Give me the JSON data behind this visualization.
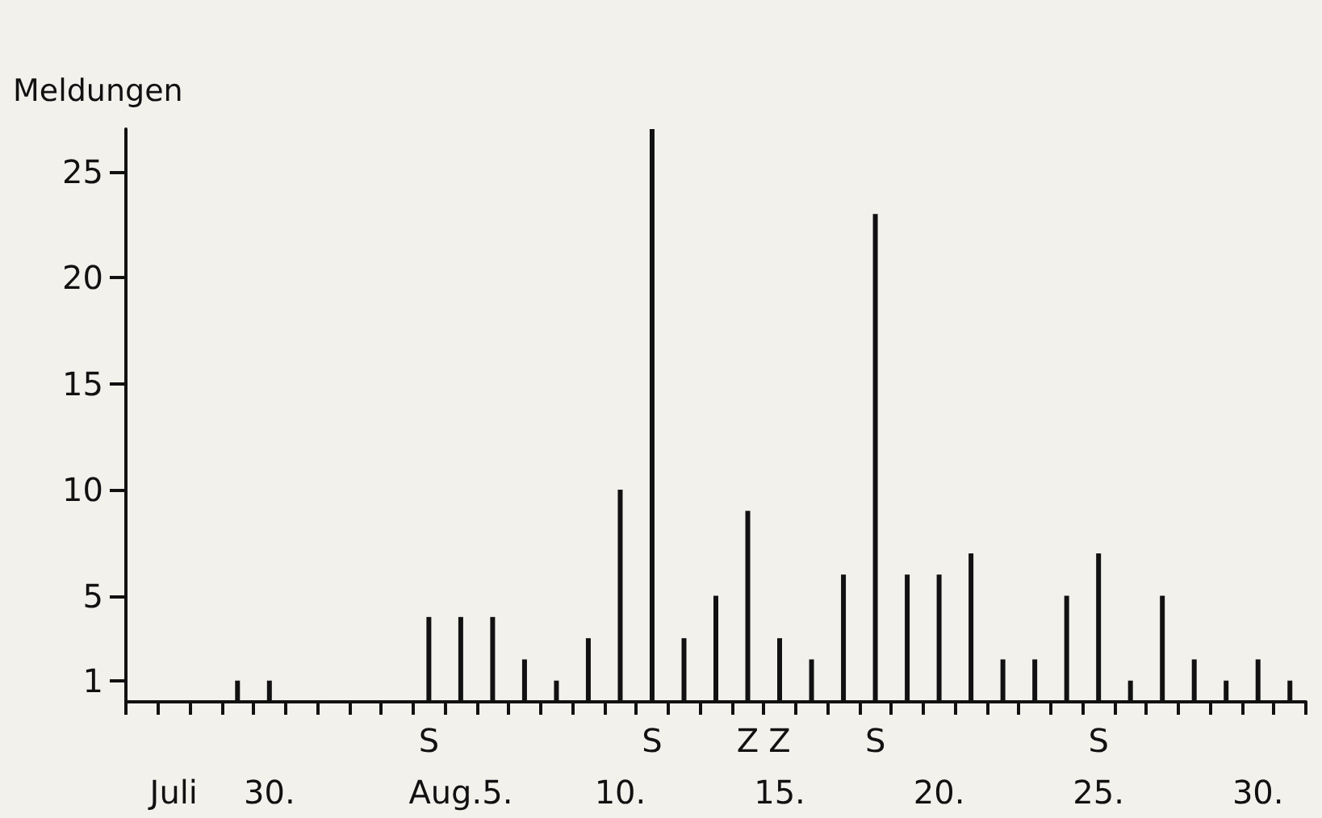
{
  "chart_data": {
    "type": "bar",
    "ylabel": "Meldungen",
    "categories": [
      null,
      "\nJuli",
      null,
      null,
      "\n30.",
      null,
      null,
      null,
      null,
      "S\n",
      "\nAug.5.",
      null,
      null,
      null,
      null,
      "\n10.",
      "S\n",
      null,
      null,
      "Z\n",
      "Z\n15.",
      null,
      null,
      "S\n",
      null,
      "\n20.",
      null,
      null,
      null,
      null,
      "S\n25.",
      null,
      null,
      null,
      null,
      "\n30.",
      null
    ],
    "values": [
      0,
      0,
      0,
      1,
      1,
      0,
      0,
      0,
      0,
      4,
      4,
      4,
      2,
      1,
      3,
      10,
      27,
      3,
      5,
      9,
      3,
      2,
      6,
      23,
      6,
      6,
      7,
      2,
      2,
      5,
      7,
      1,
      5,
      2,
      1,
      2,
      1
    ],
    "color": "#111111",
    "ylim": [
      0,
      27
    ],
    "yticks": [
      1,
      5,
      10,
      15,
      20,
      25
    ]
  }
}
